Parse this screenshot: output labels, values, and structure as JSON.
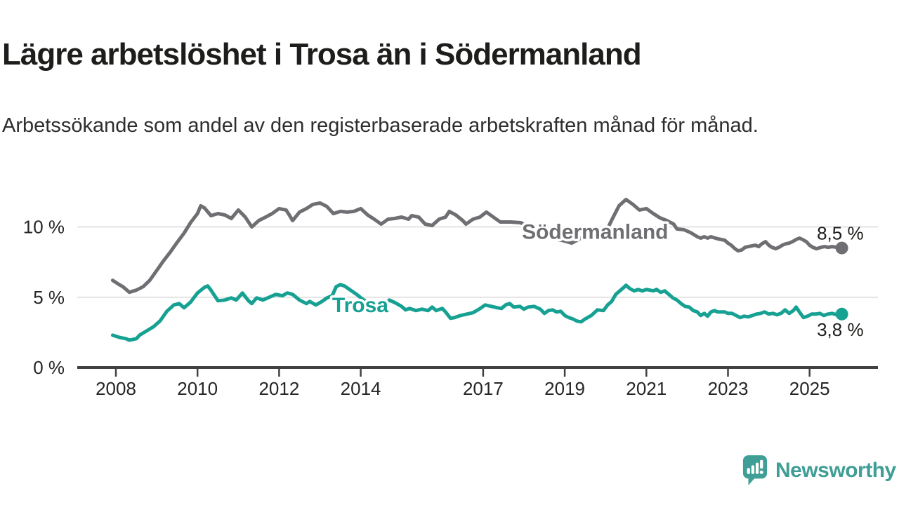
{
  "header": {
    "title": "Lägre arbetslöshet i Trosa än i Södermanland",
    "subtitle": "Arbetssökande som andel av den registerbaserade arbetskraften månad för månad."
  },
  "logo": {
    "text": "Newsworthy"
  },
  "colors": {
    "background": "#ffffff",
    "title": "#1d1d1b",
    "subtitle": "#2e2e2e",
    "axis": "#414141",
    "tick_label": "#262626",
    "grid": "#d9d9d9",
    "value_label": "#1d1d1b",
    "sodermanland": "#6f6f73",
    "trosa": "#16a193",
    "logo": "#3f9e96"
  },
  "chart_data": {
    "type": "line",
    "unit": "%",
    "grid": true,
    "x_axis": {
      "ticks": [
        2008,
        2010,
        2012,
        2014,
        2017,
        2019,
        2021,
        2023,
        2025
      ],
      "tick_labels": [
        "2008",
        "2010",
        "2012",
        "2014",
        "2017",
        "2019",
        "2021",
        "2023",
        "2025"
      ],
      "range": [
        2007.8,
        2026.7
      ]
    },
    "y_axis": {
      "ticks": [
        0,
        5,
        10
      ],
      "tick_labels": [
        "0 %",
        "5 %",
        "10 %"
      ],
      "range": [
        0,
        12.6
      ]
    },
    "series": [
      {
        "name": "Södermanland",
        "color": "#6f6f73",
        "end_label": "8,5 %",
        "end_value": 8.5,
        "end_label_position": "above",
        "label_anchor": {
          "x": 2017.95,
          "y": 9.65
        },
        "points": [
          [
            2007.92,
            6.2
          ],
          [
            2008.08,
            5.9
          ],
          [
            2008.17,
            5.75
          ],
          [
            2008.33,
            5.35
          ],
          [
            2008.5,
            5.5
          ],
          [
            2008.67,
            5.75
          ],
          [
            2008.83,
            6.2
          ],
          [
            2009.0,
            6.9
          ],
          [
            2009.17,
            7.6
          ],
          [
            2009.33,
            8.2
          ],
          [
            2009.5,
            8.9
          ],
          [
            2009.67,
            9.55
          ],
          [
            2009.83,
            10.3
          ],
          [
            2010.0,
            10.95
          ],
          [
            2010.08,
            11.5
          ],
          [
            2010.17,
            11.35
          ],
          [
            2010.33,
            10.8
          ],
          [
            2010.5,
            10.95
          ],
          [
            2010.67,
            10.85
          ],
          [
            2010.83,
            10.6
          ],
          [
            2011.0,
            11.2
          ],
          [
            2011.17,
            10.7
          ],
          [
            2011.33,
            10.0
          ],
          [
            2011.5,
            10.45
          ],
          [
            2011.67,
            10.7
          ],
          [
            2011.83,
            10.95
          ],
          [
            2012.0,
            11.3
          ],
          [
            2012.17,
            11.2
          ],
          [
            2012.25,
            10.85
          ],
          [
            2012.33,
            10.45
          ],
          [
            2012.5,
            11.05
          ],
          [
            2012.67,
            11.3
          ],
          [
            2012.83,
            11.6
          ],
          [
            2013.0,
            11.7
          ],
          [
            2013.17,
            11.45
          ],
          [
            2013.33,
            10.95
          ],
          [
            2013.5,
            11.1
          ],
          [
            2013.67,
            11.05
          ],
          [
            2013.83,
            11.1
          ],
          [
            2014.0,
            11.3
          ],
          [
            2014.17,
            10.85
          ],
          [
            2014.33,
            10.55
          ],
          [
            2014.5,
            10.2
          ],
          [
            2014.67,
            10.55
          ],
          [
            2014.83,
            10.6
          ],
          [
            2015.0,
            10.7
          ],
          [
            2015.17,
            10.55
          ],
          [
            2015.25,
            10.8
          ],
          [
            2015.42,
            10.7
          ],
          [
            2015.58,
            10.2
          ],
          [
            2015.75,
            10.1
          ],
          [
            2015.92,
            10.55
          ],
          [
            2016.08,
            10.7
          ],
          [
            2016.17,
            11.1
          ],
          [
            2016.33,
            10.85
          ],
          [
            2016.5,
            10.45
          ],
          [
            2016.58,
            10.2
          ],
          [
            2016.75,
            10.55
          ],
          [
            2016.92,
            10.7
          ],
          [
            2017.08,
            11.05
          ],
          [
            2017.25,
            10.7
          ],
          [
            2017.42,
            10.35
          ],
          [
            2017.67,
            10.35
          ],
          [
            2017.92,
            10.3
          ],
          [
            2018.17,
            9.9
          ],
          [
            2018.42,
            9.4
          ],
          [
            2018.67,
            9.2
          ],
          [
            2018.92,
            9.05
          ],
          [
            2019.17,
            8.85
          ],
          [
            2019.33,
            9.1
          ],
          [
            2019.5,
            9.35
          ],
          [
            2019.75,
            9.2
          ],
          [
            2020.0,
            9.6
          ],
          [
            2020.17,
            10.6
          ],
          [
            2020.33,
            11.5
          ],
          [
            2020.5,
            11.95
          ],
          [
            2020.67,
            11.6
          ],
          [
            2020.83,
            11.2
          ],
          [
            2021.0,
            11.3
          ],
          [
            2021.17,
            10.95
          ],
          [
            2021.33,
            10.65
          ],
          [
            2021.5,
            10.45
          ],
          [
            2021.67,
            10.2
          ],
          [
            2021.75,
            9.85
          ],
          [
            2021.92,
            9.8
          ],
          [
            2022.08,
            9.6
          ],
          [
            2022.25,
            9.3
          ],
          [
            2022.33,
            9.2
          ],
          [
            2022.42,
            9.3
          ],
          [
            2022.5,
            9.2
          ],
          [
            2022.58,
            9.3
          ],
          [
            2022.75,
            9.15
          ],
          [
            2022.92,
            9.05
          ],
          [
            2023.0,
            8.85
          ],
          [
            2023.08,
            8.7
          ],
          [
            2023.17,
            8.45
          ],
          [
            2023.25,
            8.3
          ],
          [
            2023.33,
            8.35
          ],
          [
            2023.42,
            8.55
          ],
          [
            2023.5,
            8.6
          ],
          [
            2023.67,
            8.7
          ],
          [
            2023.75,
            8.6
          ],
          [
            2023.83,
            8.8
          ],
          [
            2023.92,
            8.95
          ],
          [
            2024.0,
            8.7
          ],
          [
            2024.08,
            8.55
          ],
          [
            2024.17,
            8.45
          ],
          [
            2024.25,
            8.55
          ],
          [
            2024.33,
            8.7
          ],
          [
            2024.42,
            8.8
          ],
          [
            2024.5,
            8.85
          ],
          [
            2024.58,
            8.95
          ],
          [
            2024.67,
            9.1
          ],
          [
            2024.75,
            9.2
          ],
          [
            2024.83,
            9.1
          ],
          [
            2024.92,
            8.95
          ],
          [
            2025.0,
            8.7
          ],
          [
            2025.08,
            8.55
          ],
          [
            2025.17,
            8.45
          ],
          [
            2025.28,
            8.55
          ],
          [
            2025.37,
            8.6
          ],
          [
            2025.45,
            8.55
          ],
          [
            2025.55,
            8.6
          ],
          [
            2025.67,
            8.55
          ],
          [
            2025.79,
            8.5
          ]
        ]
      },
      {
        "name": "Trosa",
        "color": "#16a193",
        "end_label": "3,8 %",
        "end_value": 3.8,
        "end_label_position": "below",
        "label_anchor": {
          "x": 2013.3,
          "y": 4.45
        },
        "points": [
          [
            2007.92,
            2.3
          ],
          [
            2008.08,
            2.15
          ],
          [
            2008.25,
            2.05
          ],
          [
            2008.33,
            1.95
          ],
          [
            2008.5,
            2.05
          ],
          [
            2008.58,
            2.3
          ],
          [
            2008.75,
            2.6
          ],
          [
            2008.92,
            2.9
          ],
          [
            2009.08,
            3.3
          ],
          [
            2009.25,
            4.0
          ],
          [
            2009.42,
            4.45
          ],
          [
            2009.55,
            4.55
          ],
          [
            2009.67,
            4.25
          ],
          [
            2009.83,
            4.65
          ],
          [
            2010.0,
            5.3
          ],
          [
            2010.17,
            5.7
          ],
          [
            2010.25,
            5.8
          ],
          [
            2010.33,
            5.5
          ],
          [
            2010.5,
            4.75
          ],
          [
            2010.67,
            4.8
          ],
          [
            2010.83,
            4.95
          ],
          [
            2010.95,
            4.8
          ],
          [
            2011.1,
            5.3
          ],
          [
            2011.25,
            4.75
          ],
          [
            2011.33,
            4.55
          ],
          [
            2011.45,
            4.95
          ],
          [
            2011.6,
            4.8
          ],
          [
            2011.8,
            5.05
          ],
          [
            2011.92,
            5.2
          ],
          [
            2012.08,
            5.1
          ],
          [
            2012.2,
            5.3
          ],
          [
            2012.33,
            5.2
          ],
          [
            2012.5,
            4.8
          ],
          [
            2012.67,
            4.55
          ],
          [
            2012.75,
            4.7
          ],
          [
            2012.9,
            4.45
          ],
          [
            2013.05,
            4.7
          ],
          [
            2013.17,
            4.95
          ],
          [
            2013.3,
            5.1
          ],
          [
            2013.4,
            5.75
          ],
          [
            2013.5,
            5.9
          ],
          [
            2013.6,
            5.8
          ],
          [
            2013.75,
            5.5
          ],
          [
            2013.9,
            5.2
          ],
          [
            2014.05,
            4.85
          ],
          [
            2014.25,
            4.5
          ],
          [
            2014.45,
            4.25
          ],
          [
            2014.6,
            4.5
          ],
          [
            2014.7,
            4.8
          ],
          [
            2014.85,
            4.6
          ],
          [
            2015.0,
            4.35
          ],
          [
            2015.1,
            4.1
          ],
          [
            2015.2,
            4.2
          ],
          [
            2015.35,
            4.05
          ],
          [
            2015.5,
            4.15
          ],
          [
            2015.65,
            4.05
          ],
          [
            2015.75,
            4.3
          ],
          [
            2015.85,
            4.05
          ],
          [
            2016.0,
            4.2
          ],
          [
            2016.08,
            3.95
          ],
          [
            2016.2,
            3.5
          ],
          [
            2016.3,
            3.55
          ],
          [
            2016.45,
            3.7
          ],
          [
            2016.6,
            3.8
          ],
          [
            2016.75,
            3.9
          ],
          [
            2016.9,
            4.15
          ],
          [
            2017.05,
            4.45
          ],
          [
            2017.2,
            4.35
          ],
          [
            2017.35,
            4.25
          ],
          [
            2017.45,
            4.2
          ],
          [
            2017.55,
            4.45
          ],
          [
            2017.65,
            4.55
          ],
          [
            2017.75,
            4.3
          ],
          [
            2017.9,
            4.35
          ],
          [
            2018.0,
            4.15
          ],
          [
            2018.1,
            4.3
          ],
          [
            2018.25,
            4.35
          ],
          [
            2018.4,
            4.15
          ],
          [
            2018.5,
            3.85
          ],
          [
            2018.6,
            4.05
          ],
          [
            2018.7,
            4.1
          ],
          [
            2018.8,
            3.95
          ],
          [
            2018.9,
            4.0
          ],
          [
            2019.0,
            3.7
          ],
          [
            2019.1,
            3.55
          ],
          [
            2019.2,
            3.45
          ],
          [
            2019.3,
            3.3
          ],
          [
            2019.4,
            3.25
          ],
          [
            2019.5,
            3.45
          ],
          [
            2019.65,
            3.7
          ],
          [
            2019.8,
            4.1
          ],
          [
            2019.95,
            4.05
          ],
          [
            2020.05,
            4.45
          ],
          [
            2020.15,
            4.7
          ],
          [
            2020.25,
            5.2
          ],
          [
            2020.35,
            5.45
          ],
          [
            2020.45,
            5.7
          ],
          [
            2020.5,
            5.85
          ],
          [
            2020.6,
            5.6
          ],
          [
            2020.7,
            5.45
          ],
          [
            2020.8,
            5.55
          ],
          [
            2020.9,
            5.45
          ],
          [
            2021.0,
            5.55
          ],
          [
            2021.17,
            5.45
          ],
          [
            2021.25,
            5.55
          ],
          [
            2021.35,
            5.35
          ],
          [
            2021.45,
            5.45
          ],
          [
            2021.55,
            5.2
          ],
          [
            2021.65,
            4.95
          ],
          [
            2021.75,
            4.8
          ],
          [
            2021.85,
            4.55
          ],
          [
            2021.95,
            4.35
          ],
          [
            2022.05,
            4.3
          ],
          [
            2022.15,
            4.05
          ],
          [
            2022.25,
            3.95
          ],
          [
            2022.33,
            3.7
          ],
          [
            2022.42,
            3.85
          ],
          [
            2022.5,
            3.65
          ],
          [
            2022.58,
            3.95
          ],
          [
            2022.67,
            4.05
          ],
          [
            2022.75,
            3.95
          ],
          [
            2022.92,
            3.95
          ],
          [
            2023.0,
            3.85
          ],
          [
            2023.1,
            3.85
          ],
          [
            2023.2,
            3.7
          ],
          [
            2023.3,
            3.55
          ],
          [
            2023.4,
            3.65
          ],
          [
            2023.5,
            3.6
          ],
          [
            2023.6,
            3.7
          ],
          [
            2023.7,
            3.8
          ],
          [
            2023.8,
            3.85
          ],
          [
            2023.9,
            3.95
          ],
          [
            2024.0,
            3.8
          ],
          [
            2024.1,
            3.85
          ],
          [
            2024.2,
            3.75
          ],
          [
            2024.3,
            3.85
          ],
          [
            2024.4,
            4.1
          ],
          [
            2024.5,
            3.85
          ],
          [
            2024.6,
            4.05
          ],
          [
            2024.67,
            4.3
          ],
          [
            2024.75,
            3.95
          ],
          [
            2024.85,
            3.55
          ],
          [
            2024.95,
            3.65
          ],
          [
            2025.05,
            3.8
          ],
          [
            2025.15,
            3.8
          ],
          [
            2025.25,
            3.85
          ],
          [
            2025.35,
            3.7
          ],
          [
            2025.45,
            3.8
          ],
          [
            2025.55,
            3.85
          ],
          [
            2025.67,
            3.75
          ],
          [
            2025.79,
            3.8
          ]
        ]
      }
    ]
  }
}
